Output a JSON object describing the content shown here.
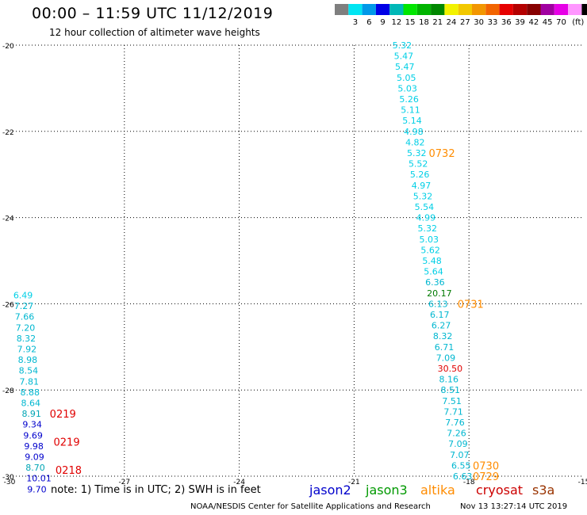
{
  "header": {
    "title": "00:00 – 11:59 UTC 11/12/2019",
    "subtitle": "12 hour collection of altimeter wave heights"
  },
  "colorbar": {
    "swatches": [
      "#7f7f7f",
      "#00e5f2",
      "#0098e8",
      "#0000e6",
      "#00b7b7",
      "#00e600",
      "#00b400",
      "#008700",
      "#f2f200",
      "#f2c800",
      "#f29600",
      "#f26400",
      "#e60000",
      "#b40000",
      "#870000",
      "#a000a0",
      "#e600e6",
      "#ff96ff",
      "#000000"
    ],
    "labels": [
      "3",
      "6",
      "9",
      "12",
      "15",
      "18",
      "21",
      "24",
      "27",
      "30",
      "33",
      "36",
      "39",
      "42",
      "45",
      "70"
    ],
    "unit": "(ft)"
  },
  "satellites": [
    {
      "name": "jason2",
      "color": "#0000cc"
    },
    {
      "name": "jason3",
      "color": "#009900"
    },
    {
      "name": "altika",
      "color": "#ff8c00"
    },
    {
      "name": "cryosat",
      "color": "#cc0000"
    },
    {
      "name": "s3a",
      "color": "#993300"
    }
  ],
  "footer": {
    "note": "note: 1) Time is in UTC; 2) SWH is in feet",
    "credit": "NOAA/NESDIS Center for Satellite Applications and Research",
    "stamp": "Nov 13 13:27:14 UTC 2019"
  },
  "chart_data": {
    "type": "scatter",
    "title": "12 hour collection of altimeter wave heights",
    "xlim": [
      -30,
      -15
    ],
    "ylim": [
      -30,
      -20
    ],
    "x_ticks": [
      "-30",
      "-27",
      "-24",
      "-21",
      "-18",
      "-15"
    ],
    "y_ticks": [
      "-20",
      "-22",
      "-24",
      "-26",
      "-28",
      "-30"
    ],
    "grid": true,
    "tracks": [
      {
        "satellite": "s3a",
        "points": [
          {
            "x": -20.0,
            "y": -20.0,
            "label": "5.32",
            "color": "#00cfe6"
          },
          {
            "x": -19.96,
            "y": -20.25,
            "label": "5.47",
            "color": "#00cfe6"
          },
          {
            "x": -19.93,
            "y": -20.5,
            "label": "5.47",
            "color": "#00cfe6"
          },
          {
            "x": -19.89,
            "y": -20.75,
            "label": "5.05",
            "color": "#00cfe6"
          },
          {
            "x": -19.86,
            "y": -21.0,
            "label": "5.03",
            "color": "#00cfe6"
          },
          {
            "x": -19.82,
            "y": -21.25,
            "label": "5.26",
            "color": "#00cfe6"
          },
          {
            "x": -19.78,
            "y": -21.5,
            "label": "5.11",
            "color": "#00cfe6"
          },
          {
            "x": -19.74,
            "y": -21.75,
            "label": "5.14",
            "color": "#00cfe6"
          },
          {
            "x": -19.7,
            "y": -22.0,
            "label": "4.98",
            "color": "#00cfe6"
          },
          {
            "x": -19.66,
            "y": -22.25,
            "label": "4.82",
            "color": "#00cfe6"
          },
          {
            "x": -19.62,
            "y": -22.5,
            "label": "5.32",
            "color": "#00cfe6"
          },
          {
            "x": -19.58,
            "y": -22.75,
            "label": "5.52",
            "color": "#00cfe6"
          },
          {
            "x": -19.54,
            "y": -23.0,
            "label": "5.26",
            "color": "#00cfe6"
          },
          {
            "x": -19.5,
            "y": -23.25,
            "label": "4.97",
            "color": "#00cfe6"
          },
          {
            "x": -19.46,
            "y": -23.5,
            "label": "5.32",
            "color": "#00cfe6"
          },
          {
            "x": -19.42,
            "y": -23.75,
            "label": "5.54",
            "color": "#00cfe6"
          },
          {
            "x": -19.38,
            "y": -24.0,
            "label": "4.99",
            "color": "#00cfe6"
          },
          {
            "x": -19.34,
            "y": -24.25,
            "label": "5.32",
            "color": "#00cfe6"
          },
          {
            "x": -19.3,
            "y": -24.5,
            "label": "5.03",
            "color": "#00cfe6"
          },
          {
            "x": -19.26,
            "y": -24.75,
            "label": "5.62",
            "color": "#00cfe6"
          },
          {
            "x": -19.22,
            "y": -25.0,
            "label": "5.48",
            "color": "#00cfe6"
          },
          {
            "x": -19.18,
            "y": -25.25,
            "label": "5.64",
            "color": "#00cfe6"
          },
          {
            "x": -19.14,
            "y": -25.5,
            "label": "6.36",
            "color": "#00b7d0"
          },
          {
            "x": -19.1,
            "y": -25.75,
            "label": "20.17",
            "color": "#007a00"
          },
          {
            "x": -19.06,
            "y": -26.0,
            "label": "6.13",
            "color": "#00b7d0"
          },
          {
            "x": -19.02,
            "y": -26.25,
            "label": "6.17",
            "color": "#00b7d0"
          },
          {
            "x": -18.98,
            "y": -26.5,
            "label": "6.27",
            "color": "#00b7d0"
          },
          {
            "x": -18.94,
            "y": -26.75,
            "label": "8.32",
            "color": "#00b7d0"
          },
          {
            "x": -18.9,
            "y": -27.0,
            "label": "6.71",
            "color": "#00b7d0"
          },
          {
            "x": -18.86,
            "y": -27.25,
            "label": "7.09",
            "color": "#00b7d0"
          },
          {
            "x": -18.82,
            "y": -27.5,
            "label": "30.50",
            "color": "#e00000"
          },
          {
            "x": -18.78,
            "y": -27.75,
            "label": "8.16",
            "color": "#00b7d0"
          },
          {
            "x": -18.74,
            "y": -28.0,
            "label": "8.51",
            "color": "#00b7d0"
          },
          {
            "x": -18.7,
            "y": -28.25,
            "label": "7.51",
            "color": "#00b7d0"
          },
          {
            "x": -18.66,
            "y": -28.5,
            "label": "7.71",
            "color": "#00b7d0"
          },
          {
            "x": -18.62,
            "y": -28.75,
            "label": "7.76",
            "color": "#00b7d0"
          },
          {
            "x": -18.58,
            "y": -29.0,
            "label": "7.26",
            "color": "#00b7d0"
          },
          {
            "x": -18.54,
            "y": -29.25,
            "label": "7.09",
            "color": "#00b7d0"
          },
          {
            "x": -18.5,
            "y": -29.5,
            "label": "7.07",
            "color": "#00b7d0"
          },
          {
            "x": -18.46,
            "y": -29.75,
            "label": "6.55",
            "color": "#00b7d0"
          },
          {
            "x": -18.42,
            "y": -30.0,
            "label": "6.63",
            "color": "#00b7d0"
          }
        ]
      },
      {
        "satellite": "jason2",
        "points": [
          {
            "x": -29.9,
            "y": -25.8,
            "label": "6.49",
            "color": "#00cfe6"
          },
          {
            "x": -29.88,
            "y": -26.05,
            "label": "7.27",
            "color": "#00b7d0"
          },
          {
            "x": -29.86,
            "y": -26.3,
            "label": "7.66",
            "color": "#00b7d0"
          },
          {
            "x": -29.84,
            "y": -26.55,
            "label": "7.20",
            "color": "#00b7d0"
          },
          {
            "x": -29.82,
            "y": -26.8,
            "label": "8.32",
            "color": "#00b7d0"
          },
          {
            "x": -29.8,
            "y": -27.05,
            "label": "7.92",
            "color": "#00b7d0"
          },
          {
            "x": -29.78,
            "y": -27.3,
            "label": "8.98",
            "color": "#00b7d0"
          },
          {
            "x": -29.76,
            "y": -27.55,
            "label": "8.54",
            "color": "#00b7d0"
          },
          {
            "x": -29.74,
            "y": -27.8,
            "label": "7.81",
            "color": "#00b7d0"
          },
          {
            "x": -29.72,
            "y": -28.05,
            "label": "8.88",
            "color": "#00b7d0"
          },
          {
            "x": -29.7,
            "y": -28.3,
            "label": "8.64",
            "color": "#00b7d0"
          },
          {
            "x": -29.68,
            "y": -28.55,
            "label": "8.91",
            "color": "#00a5b4"
          },
          {
            "x": -29.66,
            "y": -28.8,
            "label": "9.34",
            "color": "#0000cc"
          },
          {
            "x": -29.64,
            "y": -29.05,
            "label": "9.69",
            "color": "#0000cc"
          },
          {
            "x": -29.62,
            "y": -29.3,
            "label": "9.98",
            "color": "#0000cc"
          },
          {
            "x": -29.6,
            "y": -29.55,
            "label": "9.09",
            "color": "#0000cc"
          },
          {
            "x": -29.58,
            "y": -29.8,
            "label": "8.70",
            "color": "#00a5b4"
          },
          {
            "x": -29.56,
            "y": -30.05,
            "label": "10.01",
            "color": "#0000cc"
          },
          {
            "x": -29.54,
            "y": -30.3,
            "label": "9.70",
            "color": "#0000cc"
          }
        ]
      }
    ],
    "time_labels": [
      {
        "x": -19.05,
        "y": -22.5,
        "text": "0732",
        "color": "#ff8c00"
      },
      {
        "x": -18.3,
        "y": -26.0,
        "text": "0731",
        "color": "#ff8c00"
      },
      {
        "x": -17.9,
        "y": -29.75,
        "text": "0730",
        "color": "#ff8c00"
      },
      {
        "x": -17.9,
        "y": -30.0,
        "text": "0729",
        "color": "#ff8c00"
      },
      {
        "x": -28.95,
        "y": -28.55,
        "text": "0219",
        "color": "#e00000"
      },
      {
        "x": -28.85,
        "y": -29.2,
        "text": "0219",
        "color": "#e00000"
      },
      {
        "x": -28.8,
        "y": -29.85,
        "text": "0218",
        "color": "#e00000"
      }
    ]
  }
}
